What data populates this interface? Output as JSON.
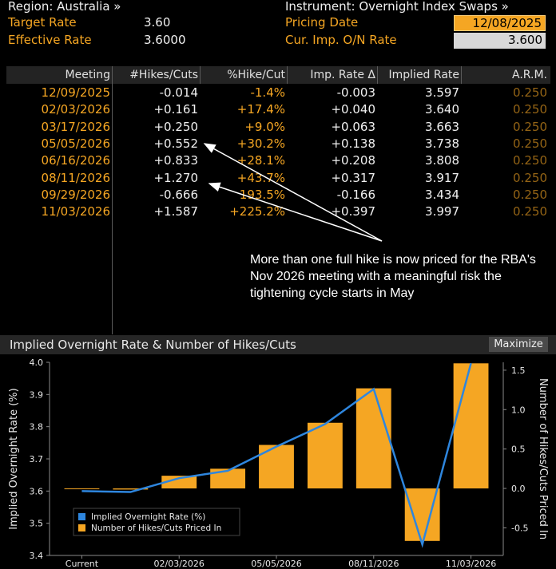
{
  "header": {
    "region_label": "Region: Australia »",
    "target_rate_label": "Target Rate",
    "target_rate_value": "3.60",
    "effective_rate_label": "Effective Rate",
    "effective_rate_value": "3.6000",
    "instrument_label": "Instrument: Overnight Index Swaps »",
    "pricing_date_label": "Pricing Date",
    "pricing_date_value": "12/08/2025",
    "cur_imp_label": "Cur. Imp. O/N Rate",
    "cur_imp_value": "3.600"
  },
  "table": {
    "columns": [
      "Meeting",
      "#Hikes/Cuts",
      "%Hike/Cut",
      "Imp. Rate Δ",
      "Implied Rate",
      "A.R.M."
    ],
    "rows": [
      {
        "meeting": "12/09/2025",
        "hikes": "-0.014",
        "pct": "-1.4%",
        "delta": "-0.003",
        "implied": "3.597",
        "arm": "0.250"
      },
      {
        "meeting": "02/03/2026",
        "hikes": "+0.161",
        "pct": "+17.4%",
        "delta": "+0.040",
        "implied": "3.640",
        "arm": "0.250"
      },
      {
        "meeting": "03/17/2026",
        "hikes": "+0.250",
        "pct": "+9.0%",
        "delta": "+0.063",
        "implied": "3.663",
        "arm": "0.250"
      },
      {
        "meeting": "05/05/2026",
        "hikes": "+0.552",
        "pct": "+30.2%",
        "delta": "+0.138",
        "implied": "3.738",
        "arm": "0.250"
      },
      {
        "meeting": "06/16/2026",
        "hikes": "+0.833",
        "pct": "+28.1%",
        "delta": "+0.208",
        "implied": "3.808",
        "arm": "0.250"
      },
      {
        "meeting": "08/11/2026",
        "hikes": "+1.270",
        "pct": "+43.7%",
        "delta": "+0.317",
        "implied": "3.917",
        "arm": "0.250"
      },
      {
        "meeting": "09/29/2026",
        "hikes": "-0.666",
        "pct": "193.5%",
        "delta": "-0.166",
        "implied": "3.434",
        "arm": "0.250"
      },
      {
        "meeting": "11/03/2026",
        "hikes": "+1.587",
        "pct": "+225.2%",
        "delta": "+0.397",
        "implied": "3.997",
        "arm": "0.250"
      }
    ]
  },
  "annotation": "More than one full hike is now priced for the RBA's Nov 2026 meeting with a meaningful risk the tightening cycle starts in May",
  "chart_panel": {
    "title": "Implied Overnight Rate & Number of Hikes/Cuts",
    "maximize_label": "Maximize"
  },
  "colors": {
    "orange": "#f5a623",
    "line_blue": "#2e86de",
    "white": "#f0f0f0"
  },
  "chart_data": {
    "type": "bar",
    "categories": [
      "Current",
      "12/09/2025",
      "02/03/2026",
      "03/17/2026",
      "05/05/2026",
      "06/16/2026",
      "08/11/2026",
      "09/29/2026",
      "11/03/2026"
    ],
    "x_tick_labels": [
      "Current",
      "02/03/2026",
      "05/05/2026",
      "08/11/2026",
      "11/03/2026"
    ],
    "series": [
      {
        "name": "Implied Overnight Rate (%)",
        "type": "line",
        "axis": "left",
        "color": "#2e86de",
        "values": [
          3.6,
          3.597,
          3.64,
          3.663,
          3.738,
          3.808,
          3.917,
          3.434,
          3.997
        ]
      },
      {
        "name": "Number of Hikes/Cuts Priced In",
        "type": "bar",
        "axis": "right",
        "color": "#f5a623",
        "values": [
          0.0,
          -0.014,
          0.161,
          0.25,
          0.552,
          0.833,
          1.27,
          -0.666,
          1.587
        ]
      }
    ],
    "ylabel": "Implied Overnight Rate (%)",
    "y2label": "Number of Hikes/Cuts Priced In",
    "ylim": [
      3.4,
      4.0
    ],
    "y2lim": [
      -0.85,
      1.6
    ],
    "yticks": [
      3.4,
      3.5,
      3.6,
      3.7,
      3.8,
      3.9,
      4.0
    ],
    "y2ticks": [
      -0.5,
      0.0,
      0.5,
      1.0,
      1.5
    ],
    "legend_position": "bottom-left",
    "grid": false
  }
}
